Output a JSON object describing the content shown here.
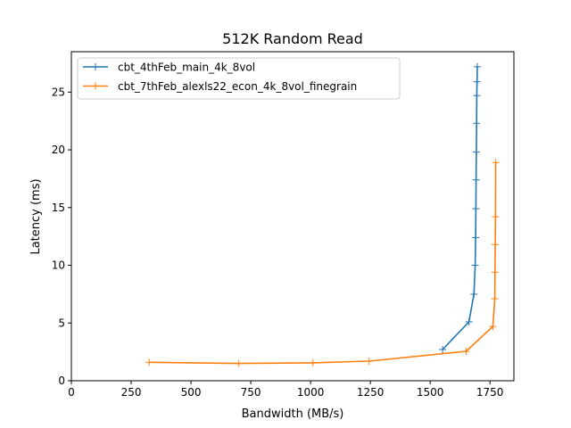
{
  "chart_data": {
    "type": "line",
    "title": "512K  Random Read",
    "xlabel": "Bandwidth (MB/s)",
    "ylabel": "Latency (ms)",
    "xlim": [
      0,
      1850
    ],
    "ylim": [
      0,
      28.5
    ],
    "xticks": [
      0,
      250,
      500,
      750,
      1000,
      1250,
      1500,
      1750
    ],
    "yticks": [
      0,
      5,
      10,
      15,
      20,
      25
    ],
    "grid": false,
    "legend_position": "top-left",
    "marker": "plus",
    "series": [
      {
        "name": "cbt_4thFeb_main_4k_8vol",
        "color": "#1f77b4",
        "x": [
          1552,
          1662,
          1683,
          1688,
          1690,
          1691,
          1692,
          1693,
          1694,
          1695,
          1696,
          1697
        ],
        "y": [
          2.7,
          5.1,
          7.5,
          10.0,
          12.4,
          14.9,
          17.4,
          19.8,
          22.3,
          24.7,
          25.9,
          27.2
        ]
      },
      {
        "name": "cbt_7thFeb_alexls22_econ_4k_8vol_finegrain",
        "color": "#ff7f0e",
        "x": [
          325,
          700,
          1010,
          1245,
          1650,
          1762,
          1770,
          1771,
          1772,
          1773,
          1774
        ],
        "y": [
          1.6,
          1.5,
          1.55,
          1.7,
          2.55,
          4.7,
          7.1,
          9.4,
          11.8,
          14.2,
          18.9
        ]
      }
    ]
  }
}
